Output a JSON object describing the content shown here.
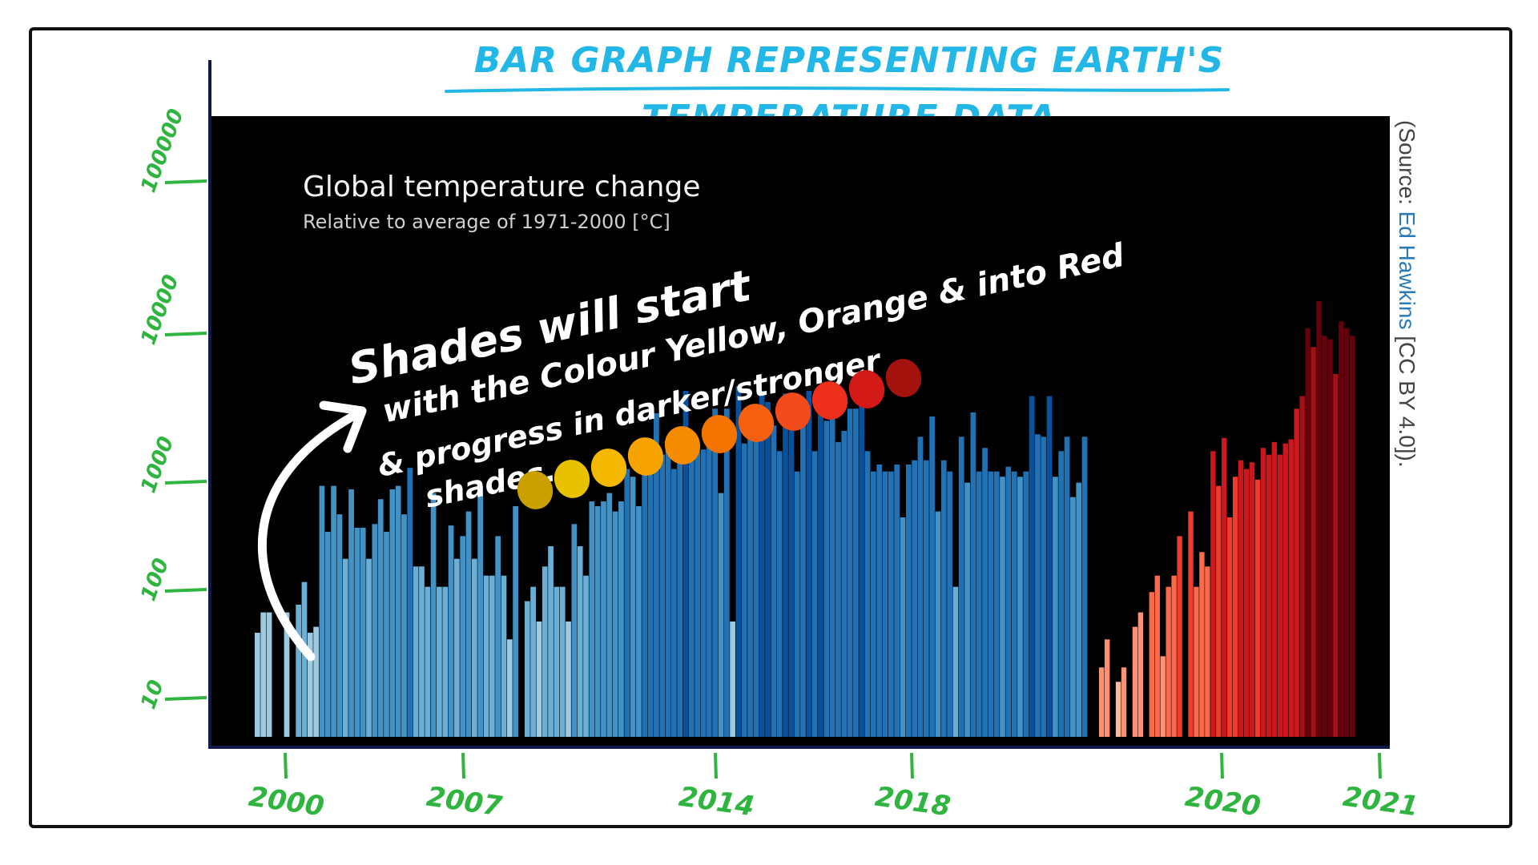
{
  "title": "Bar Graph Representing Earth's Temperature Data",
  "panel": {
    "title": "Global temperature change",
    "subtitle": "Relative to average of 1971-2000  [°C]"
  },
  "source": {
    "prefix": "(Source: ",
    "author": "Ed Hawkins",
    "suffix": " [CC BY 4.0])."
  },
  "annotation": {
    "lines": [
      "Shades will start",
      "with the Colour Yellow, Orange & into Red",
      "& progress in darker/stronger",
      "shades."
    ],
    "swatches": [
      "#c9a000",
      "#e8c200",
      "#f5b800",
      "#f7a300",
      "#f58c00",
      "#f57300",
      "#f45f10",
      "#f24a1a",
      "#ee2f1c",
      "#d31a17",
      "#a4120d"
    ]
  },
  "colors": {
    "panel_bg": "#000000",
    "axis_green": "#2fb53f",
    "title_cyan": "#22b7e6"
  },
  "chart_data": {
    "type": "bar",
    "title": "Global temperature change",
    "subtitle": "Relative to average of 1971-2000  [°C]",
    "y_axis_labels": [
      "10",
      "100",
      "1000",
      "10000",
      "100000"
    ],
    "x_axis_labels": [
      "2000",
      "2007",
      "2014",
      "2018",
      "2020",
      "2021"
    ],
    "y_scale": "log",
    "ylim": [
      1,
      100000
    ],
    "groups": [
      {
        "name": "blue",
        "values": [
          8,
          12,
          12,
          0,
          0,
          12,
          0,
          14,
          22,
          8,
          9,
          150,
          60,
          150,
          85,
          35,
          140,
          65,
          65,
          35,
          70,
          115,
          60,
          140,
          150,
          85,
          215,
          30,
          30,
          20,
          130,
          20,
          20,
          68,
          35,
          55,
          90,
          35,
          150,
          25,
          25,
          55,
          25,
          7,
          100,
          0,
          15,
          20,
          10,
          30,
          45,
          20,
          20,
          10,
          70,
          45,
          25,
          110,
          100,
          110,
          130,
          90,
          110,
          210,
          180,
          100,
          215,
          210,
          640,
          280,
          310,
          210,
          295,
          1000,
          300,
          300,
          310,
          550,
          700,
          130,
          700,
          10,
          1100,
          350,
          500,
          510,
          1000,
          800,
          500,
          300,
          950,
          950,
          200,
          650,
          1000,
          300,
          1100,
          550,
          700,
          360,
          450,
          700,
          700,
          800,
          300,
          200,
          230,
          200,
          200,
          230,
          80,
          230,
          250,
          400,
          250,
          600,
          90,
          250,
          200,
          20,
          400,
          160,
          650,
          200,
          320,
          200,
          200,
          180,
          220,
          200,
          180,
          200,
          900,
          420,
          400,
          900,
          180,
          300,
          400,
          120,
          160,
          400
        ],
        "shades": [
          "#c6dbef",
          "#9ecae1",
          "#6baed6",
          "#4292c6",
          "#2171b5",
          "#08519c",
          "#08306b"
        ]
      },
      {
        "name": "red",
        "values": [
          4,
          7,
          0,
          3,
          4,
          0,
          9,
          12,
          0,
          18,
          25,
          5,
          20,
          25,
          55,
          0,
          90,
          20,
          40,
          30,
          300,
          150,
          390,
          80,
          180,
          250,
          210,
          240,
          170,
          320,
          280,
          360,
          280,
          350,
          380,
          700,
          900,
          3500,
          2400,
          6000,
          3000,
          2800,
          1400,
          4000,
          3500,
          3000
        ],
        "shades": [
          "#fcbba1",
          "#fc9272",
          "#fb6a4a",
          "#ef3b2c",
          "#cb181d",
          "#a50f15",
          "#67000d"
        ]
      }
    ]
  }
}
